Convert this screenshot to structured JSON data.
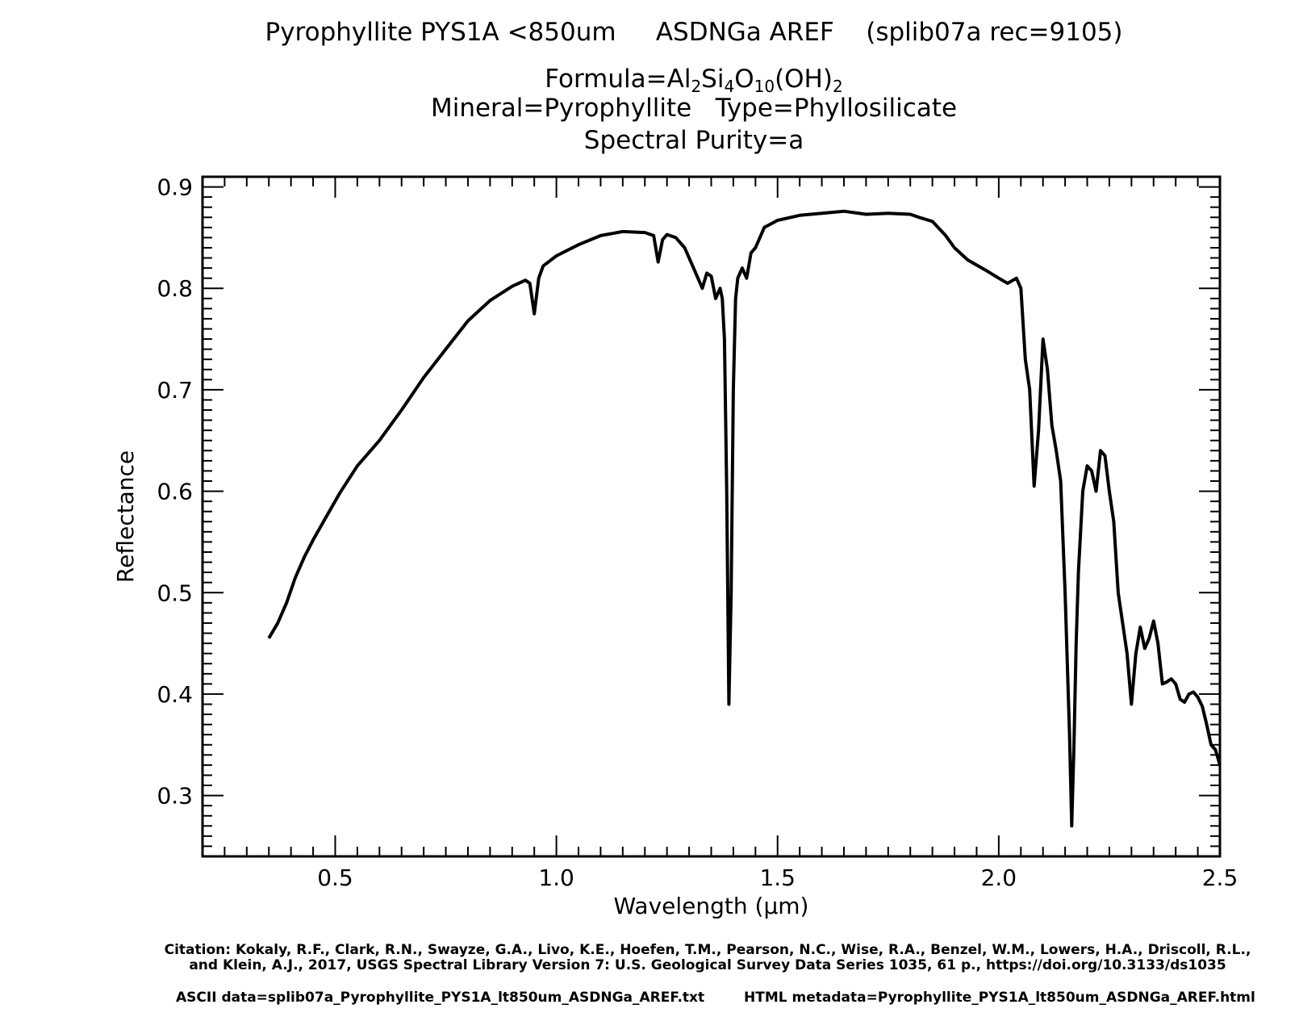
{
  "header": {
    "title_line": "Pyrophyllite PYS1A <850um     ASDNGa AREF    (splib07a rec=9105)",
    "formula_prefix": "Formula=",
    "formula_parts": [
      "Al",
      "2",
      "Si",
      "4",
      "O",
      "10",
      "(OH)",
      "2"
    ],
    "mineral_line": "Mineral=Pyrophyllite   Type=Phyllosilicate",
    "purity_line": "Spectral Purity=a"
  },
  "footer": {
    "citation": "Citation: Kokaly, R.F., Clark, R.N., Swayze, G.A., Livo, K.E., Hoefen, T.M., Pearson, N.C., Wise, R.A., Benzel, W.M., Lowers, H.A., Driscoll, R.L., and Klein, A.J., 2017, USGS Spectral Library Version 7: U.S. Geological Survey Data Series 1035, 61 p., https://doi.org/10.3133/ds1035",
    "ascii_data": "ASCII data=splib07a_Pyrophyllite_PYS1A_lt850um_ASDNGa_AREF.txt",
    "html_metadata": "HTML metadata=Pyrophyllite_PYS1A_lt850um_ASDNGa_AREF.html"
  },
  "chart_data": {
    "type": "line",
    "xlabel": "Wavelength (μm)",
    "ylabel": "Reflectance",
    "xlim": [
      0.2,
      2.5
    ],
    "ylim": [
      0.24,
      0.91
    ],
    "x_ticks": [
      0.5,
      1.0,
      1.5,
      2.0,
      2.5
    ],
    "x_tick_labels": [
      "0.5",
      "1.0",
      "1.5",
      "2.0",
      "2.5"
    ],
    "y_ticks": [
      0.3,
      0.4,
      0.5,
      0.6,
      0.7,
      0.8,
      0.9
    ],
    "y_tick_labels": [
      "0.3",
      "0.4",
      "0.5",
      "0.6",
      "0.7",
      "0.8",
      "0.9"
    ],
    "grid": false,
    "line_color": "#000000",
    "series": [
      {
        "x": [
          0.35,
          0.37,
          0.39,
          0.41,
          0.43,
          0.45,
          0.48,
          0.51,
          0.55,
          0.6,
          0.65,
          0.7,
          0.75,
          0.8,
          0.85,
          0.9,
          0.93,
          0.94,
          0.95,
          0.96,
          0.97,
          1.0,
          1.05,
          1.1,
          1.15,
          1.2,
          1.22,
          1.23,
          1.24,
          1.25,
          1.27,
          1.29,
          1.31,
          1.33,
          1.34,
          1.35,
          1.36,
          1.37,
          1.375,
          1.38,
          1.385,
          1.39,
          1.395,
          1.4,
          1.405,
          1.41,
          1.42,
          1.43,
          1.44,
          1.45,
          1.47,
          1.5,
          1.55,
          1.6,
          1.65,
          1.7,
          1.75,
          1.8,
          1.82,
          1.85,
          1.88,
          1.9,
          1.93,
          1.97,
          2.0,
          2.02,
          2.04,
          2.05,
          2.06,
          2.07,
          2.08,
          2.09,
          2.1,
          2.11,
          2.12,
          2.13,
          2.14,
          2.15,
          2.16,
          2.165,
          2.17,
          2.175,
          2.18,
          2.19,
          2.2,
          2.21,
          2.22,
          2.23,
          2.24,
          2.25,
          2.26,
          2.27,
          2.28,
          2.29,
          2.3,
          2.31,
          2.32,
          2.33,
          2.34,
          2.35,
          2.36,
          2.37,
          2.38,
          2.39,
          2.4,
          2.41,
          2.42,
          2.43,
          2.44,
          2.45,
          2.46,
          2.47,
          2.48,
          2.49,
          2.5
        ],
        "y": [
          0.455,
          0.47,
          0.49,
          0.515,
          0.535,
          0.552,
          0.575,
          0.598,
          0.625,
          0.65,
          0.68,
          0.712,
          0.74,
          0.768,
          0.788,
          0.802,
          0.808,
          0.805,
          0.775,
          0.81,
          0.822,
          0.832,
          0.843,
          0.852,
          0.856,
          0.855,
          0.852,
          0.826,
          0.848,
          0.853,
          0.85,
          0.84,
          0.82,
          0.8,
          0.815,
          0.812,
          0.79,
          0.8,
          0.79,
          0.75,
          0.6,
          0.39,
          0.5,
          0.7,
          0.79,
          0.81,
          0.82,
          0.81,
          0.835,
          0.84,
          0.86,
          0.867,
          0.872,
          0.874,
          0.876,
          0.873,
          0.874,
          0.873,
          0.87,
          0.866,
          0.852,
          0.84,
          0.828,
          0.818,
          0.81,
          0.805,
          0.81,
          0.8,
          0.73,
          0.7,
          0.605,
          0.66,
          0.75,
          0.72,
          0.665,
          0.64,
          0.61,
          0.5,
          0.36,
          0.27,
          0.35,
          0.45,
          0.52,
          0.6,
          0.625,
          0.62,
          0.6,
          0.64,
          0.635,
          0.6,
          0.57,
          0.5,
          0.47,
          0.44,
          0.39,
          0.44,
          0.466,
          0.445,
          0.455,
          0.472,
          0.45,
          0.41,
          0.412,
          0.415,
          0.41,
          0.395,
          0.392,
          0.4,
          0.402,
          0.397,
          0.388,
          0.37,
          0.35,
          0.345,
          0.33
        ]
      }
    ]
  }
}
